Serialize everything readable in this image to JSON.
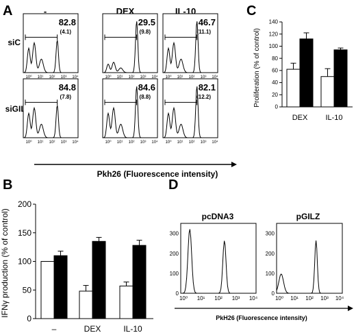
{
  "panels": {
    "A": {
      "letter": "A",
      "cols": [
        "-",
        "DEX",
        "IL-10"
      ],
      "rows": [
        "siC",
        "siGILZ"
      ],
      "ticks": [
        "10⁰",
        "10¹",
        "10²",
        "10³",
        "10⁴"
      ],
      "xlabel": "Pkh26 (Fluorescence intensity)",
      "values": [
        [
          {
            "pct": "82.8",
            "mfi": "(4.1)"
          },
          {
            "pct": "29.5",
            "mfi": "(9.8)"
          },
          {
            "pct": "46.7",
            "mfi": "(11.1)"
          }
        ],
        [
          {
            "pct": "84.8",
            "mfi": "(7.8)"
          },
          {
            "pct": "84.6",
            "mfi": "(8.8)"
          },
          {
            "pct": "82.1",
            "mfi": "(12.2)"
          }
        ]
      ]
    },
    "B": {
      "letter": "B",
      "ylabel": "IFNγ production  (% of control)",
      "ylim": [
        0,
        200
      ],
      "yticks": [
        0,
        50,
        100,
        150,
        200
      ],
      "categories": [
        "–",
        "DEX",
        "IL-10"
      ]
    },
    "C": {
      "letter": "C",
      "ylabel": "Proliferation (% of control)",
      "ylim": [
        0,
        140
      ],
      "yticks": [
        0,
        20,
        40,
        60,
        80,
        100,
        120,
        140
      ],
      "categories": [
        "DEX",
        "IL-10"
      ]
    },
    "D": {
      "letter": "D",
      "titles": [
        "pcDNA3",
        "pGILZ"
      ],
      "yticks": [
        "0",
        "100",
        "200",
        "300"
      ],
      "xticks": [
        "10⁰",
        "10¹",
        "10²",
        "10³",
        "10⁴"
      ],
      "xlabel": "PkH26 (Fluorescence intensity)"
    }
  },
  "chart_data": [
    {
      "type": "bar",
      "panel": "B",
      "categories": [
        "–",
        "DEX",
        "IL-10"
      ],
      "series": [
        {
          "values": [
            100,
            48,
            57
          ],
          "errors": [
            0,
            10,
            7
          ],
          "color": "#ffffff"
        },
        {
          "values": [
            110,
            135,
            128
          ],
          "errors": [
            8,
            7,
            9
          ],
          "color": "#000000"
        }
      ],
      "ylabel": "IFNγ production  (% of control)",
      "ylim": [
        0,
        200
      ]
    },
    {
      "type": "bar",
      "panel": "C",
      "categories": [
        "DEX",
        "IL-10"
      ],
      "series": [
        {
          "values": [
            62,
            50
          ],
          "errors": [
            10,
            13
          ],
          "color": "#ffffff"
        },
        {
          "values": [
            112,
            94
          ],
          "errors": [
            10,
            3
          ],
          "color": "#000000"
        }
      ],
      "ylabel": "Proliferation (% of control)",
      "ylim": [
        0,
        140
      ]
    }
  ]
}
